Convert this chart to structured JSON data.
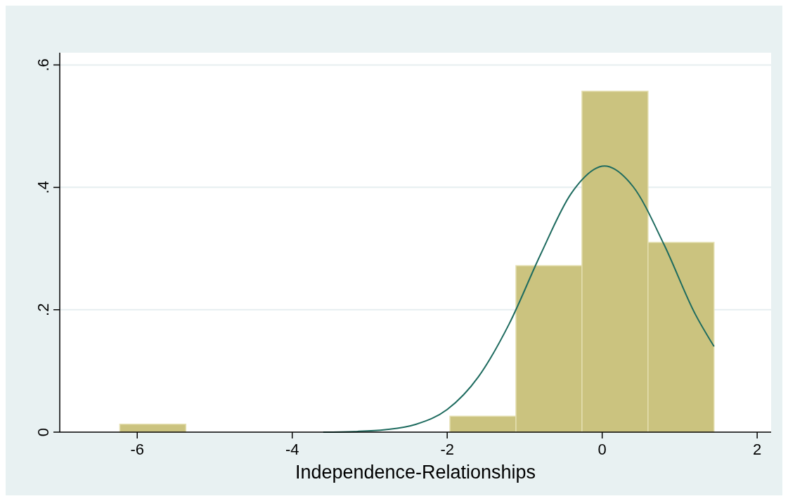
{
  "chart_data": {
    "type": "histogram",
    "xlabel": "Independence-Relationships",
    "xlim": [
      -7.0,
      2.18
    ],
    "xticks": [
      -6,
      -4,
      -2,
      0,
      2
    ],
    "ylim": [
      0,
      0.62
    ],
    "yticks": [
      {
        "value": 0,
        "label": "0"
      },
      {
        "value": 0.2,
        "label": ".2"
      },
      {
        "value": 0.4,
        "label": ".4"
      },
      {
        "value": 0.6,
        "label": ".6"
      }
    ],
    "grid": "y",
    "series": [
      {
        "color": "#cbc37f",
        "bins": [
          -6.225,
          -5.373,
          -4.521,
          -3.669,
          -2.817,
          -1.965,
          -1.113,
          -0.261,
          0.591,
          1.443
        ],
        "values": [
          0.013,
          0,
          0,
          0,
          0,
          0.026,
          0.272,
          0.557,
          0.31
        ]
      },
      {
        "type": "line",
        "color": "#1e6b5f",
        "x": [
          -3.6,
          -3.2,
          -2.8,
          -2.4,
          -2.0,
          -1.6,
          -1.2,
          -0.8,
          -0.4,
          0.03,
          0.4,
          0.8,
          1.2,
          1.443
        ],
        "values": [
          0,
          0.001,
          0.004,
          0.013,
          0.037,
          0.09,
          0.177,
          0.289,
          0.39,
          0.435,
          0.401,
          0.306,
          0.193,
          0.14
        ]
      }
    ]
  }
}
